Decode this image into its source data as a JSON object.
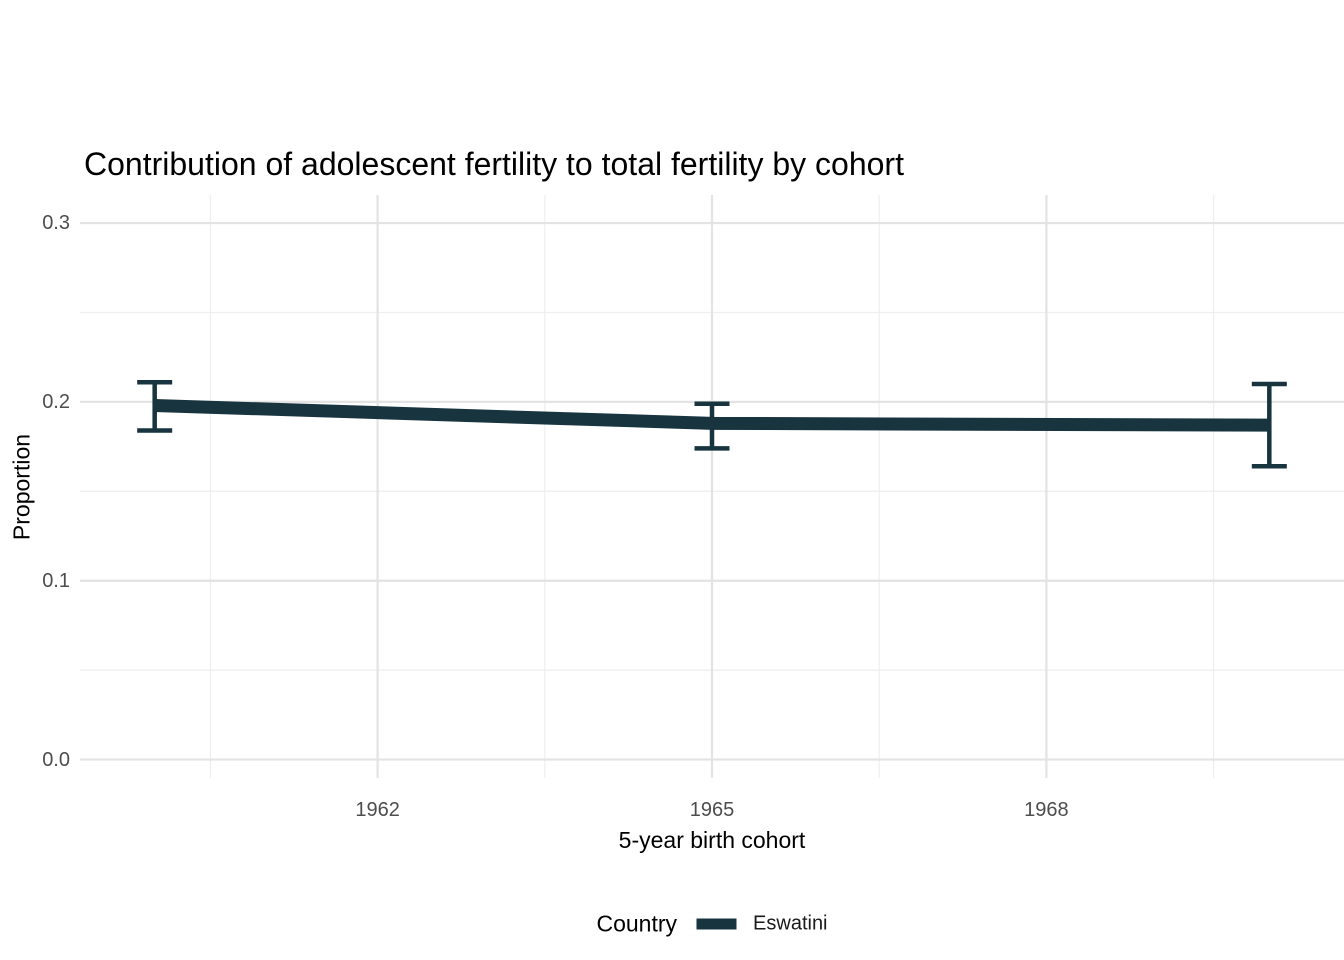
{
  "chart_data": {
    "type": "line",
    "title": "Contribution of adolescent fertility to total fertility by cohort",
    "xlabel": "5-year birth cohort",
    "ylabel": "Proportion",
    "x": [
      1960,
      1965,
      1970
    ],
    "series": [
      {
        "name": "Eswatini",
        "color": "#17343f",
        "values": [
          0.198,
          0.188,
          0.187
        ],
        "err_low": [
          0.184,
          0.174,
          0.164
        ],
        "err_high": [
          0.211,
          0.199,
          0.21
        ]
      }
    ],
    "x_ticks": {
      "values": [
        1962,
        1965,
        1968
      ],
      "labels": [
        "1962",
        "1965",
        "1968"
      ]
    },
    "y_ticks": {
      "values": [
        0,
        0.1,
        0.2,
        0.3
      ],
      "labels": [
        "0.0",
        "0.1",
        "0.2",
        "0.3"
      ]
    },
    "x_minor": [
      1960.5,
      1963.5,
      1966.5,
      1969.5
    ],
    "y_minor": [
      0.05,
      0.15,
      0.25
    ],
    "xlim": [
      1959.33,
      1970.67
    ],
    "ylim": [
      -0.0103,
      0.3157
    ],
    "grid": true,
    "legend_position": "bottom",
    "legend": {
      "title": "Country",
      "items": [
        {
          "label": "Eswatini",
          "color": "#17343f"
        }
      ]
    }
  },
  "colors": {
    "background": "#ffffff",
    "grid_major": "#e3e3e3",
    "grid_minor": "#efefef",
    "tick_text": "#4d4d4d",
    "title_text": "#000000"
  }
}
